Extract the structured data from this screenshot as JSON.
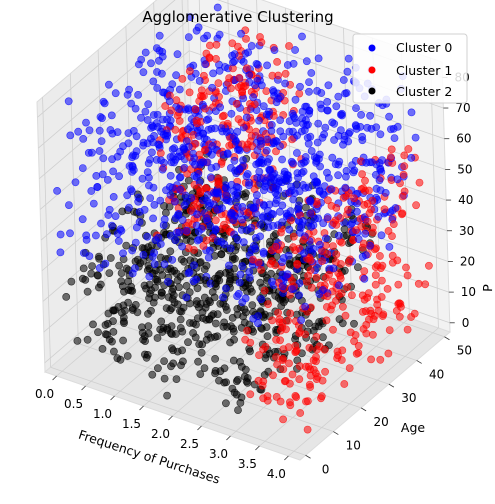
{
  "chart_data": {
    "type": "scatter",
    "projection": "3d",
    "title": "Agglomerative Clustering",
    "xlabel": "Frequency of Purchases",
    "ylabel": "Age",
    "zlabel": "P",
    "xlim": [
      -0.2,
      4.2
    ],
    "ylim": [
      -2,
      52
    ],
    "zlim": [
      -3,
      85
    ],
    "x_ticks": [
      "0.0",
      "0.5",
      "1.0",
      "1.5",
      "2.0",
      "2.5",
      "3.0",
      "3.5",
      "4.0"
    ],
    "y_ticks": [
      "0",
      "10",
      "20",
      "30",
      "40",
      "50"
    ],
    "z_ticks": [
      "0",
      "10",
      "20",
      "30",
      "40",
      "50",
      "60",
      "70",
      "80"
    ],
    "grid": true,
    "legend_position": "top-right",
    "series": [
      {
        "name": "Cluster 0",
        "color": "#0000ff",
        "regions": [
          {
            "x": [
              0.0,
              4.0
            ],
            "y": [
              0,
              50
            ],
            "z": [
              32,
              82
            ],
            "count": 900
          }
        ]
      },
      {
        "name": "Cluster 1",
        "color": "#ff0000",
        "regions": [
          {
            "x": [
              0.8,
              1.9
            ],
            "y": [
              15,
              50
            ],
            "z": [
              30,
              80
            ],
            "count": 250
          },
          {
            "x": [
              3.2,
              4.0
            ],
            "y": [
              0,
              50
            ],
            "z": [
              0,
              60
            ],
            "count": 320
          }
        ]
      },
      {
        "name": "Cluster 2",
        "color": "#000000",
        "regions": [
          {
            "x": [
              0.0,
              3.2
            ],
            "y": [
              0,
              50
            ],
            "z": [
              0,
              35
            ],
            "count": 700
          }
        ]
      }
    ]
  }
}
